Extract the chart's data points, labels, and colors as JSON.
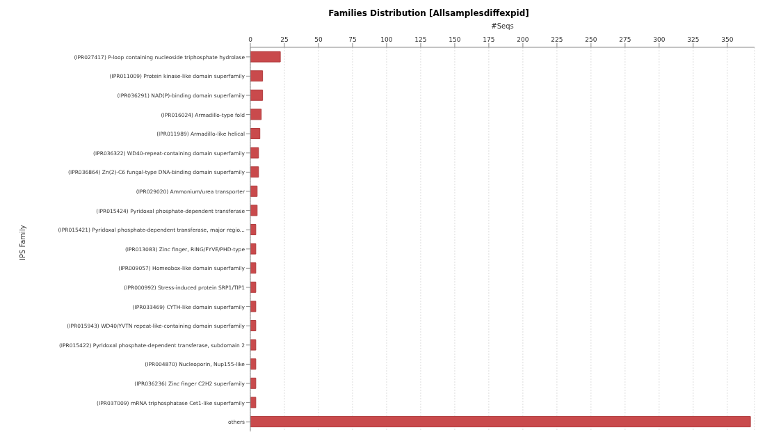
{
  "chart_data": {
    "type": "bar",
    "orientation": "horizontal",
    "title": "Families Distribution [Allsamplesdiffexpid]",
    "xlabel": "#Seqs",
    "ylabel": "IPS Family",
    "categories": [
      "(IPR027417) P-loop containing nucleoside triphosphate hydrolase",
      "(IPR011009) Protein kinase-like domain superfamily",
      "(IPR036291) NAD(P)-binding domain superfamily",
      "(IPR016024) Armadillo-type fold",
      "(IPR011989) Armadillo-like helical",
      "(IPR036322) WD40-repeat-containing domain superfamily",
      "(IPR036864) Zn(2)-C6 fungal-type DNA-binding domain superfamily",
      "(IPR029020) Ammonium/urea transporter",
      "(IPR015424) Pyridoxal phosphate-dependent transferase",
      "(IPR015421) Pyridoxal phosphate-dependent transferase, major regio...",
      "(IPR013083) Zinc finger, RING/FYVE/PHD-type",
      "(IPR009057) Homeobox-like domain superfamily",
      "(IPR000992) Stress-induced protein SRP1/TIP1",
      "(IPR033469) CYTH-like domain superfamily",
      "(IPR015943) WD40/YVTN repeat-like-containing domain superfamily",
      "(IPR015422) Pyridoxal phosphate-dependent transferase, subdomain 2",
      "(IPR004870) Nucleoporin, Nup155-like",
      "(IPR036236) Zinc finger C2H2 superfamily",
      "(IPR037009) mRNA triphosphatase Cet1-like superfamily",
      "others"
    ],
    "values": [
      22,
      9,
      9,
      8,
      7,
      6,
      6,
      5,
      5,
      4,
      4,
      4,
      4,
      4,
      4,
      4,
      4,
      4,
      4,
      367
    ],
    "color": "#c94a4c",
    "xlim": [
      0,
      370
    ],
    "xticks": [
      0,
      25,
      50,
      75,
      100,
      125,
      150,
      175,
      200,
      225,
      250,
      275,
      300,
      325,
      350
    ],
    "grid": "x"
  }
}
